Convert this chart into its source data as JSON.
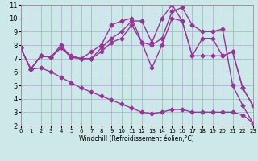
{
  "bg_color": "#cce8e8",
  "grid_color": "#aaaacc",
  "line_color": "#993399",
  "line_width": 1.0,
  "marker": "D",
  "marker_size": 2.5,
  "xlabel": "Windchill (Refroidissement éolien,°C)",
  "xlim": [
    0,
    23
  ],
  "ylim": [
    2,
    11
  ],
  "xticks": [
    0,
    1,
    2,
    3,
    4,
    5,
    6,
    7,
    8,
    9,
    10,
    11,
    12,
    13,
    14,
    15,
    16,
    17,
    18,
    19,
    20,
    21,
    22,
    23
  ],
  "yticks": [
    2,
    3,
    4,
    5,
    6,
    7,
    8,
    9,
    10,
    11
  ],
  "lines": [
    {
      "x": [
        0,
        1,
        2,
        3,
        4,
        5,
        6,
        7,
        8,
        9,
        10,
        11,
        12,
        13,
        14,
        15,
        16,
        17,
        18,
        19,
        20,
        21,
        22,
        23
      ],
      "y": [
        7.8,
        6.2,
        7.2,
        7.1,
        7.8,
        7.1,
        7.0,
        7.5,
        8.0,
        9.5,
        9.8,
        10.0,
        8.2,
        6.3,
        8.0,
        10.0,
        9.8,
        7.2,
        7.2,
        7.2,
        7.2,
        7.5,
        4.8,
        3.5
      ]
    },
    {
      "x": [
        0,
        1,
        2,
        3,
        4,
        5,
        6,
        7,
        8,
        9,
        10,
        11,
        12,
        13,
        14,
        15,
        16,
        17,
        18,
        19,
        20,
        21,
        22,
        23
      ],
      "y": [
        7.8,
        6.2,
        7.2,
        7.1,
        8.0,
        7.1,
        7.0,
        7.0,
        7.5,
        8.2,
        8.5,
        9.5,
        8.2,
        8.0,
        8.5,
        10.5,
        10.8,
        9.5,
        9.0,
        9.0,
        9.2,
        5.0,
        3.5,
        2.2
      ]
    },
    {
      "x": [
        0,
        1,
        2,
        3,
        4,
        5,
        6,
        7,
        8,
        9,
        10,
        11,
        12,
        13,
        14,
        15,
        16,
        17,
        18,
        19,
        20,
        21,
        22,
        23
      ],
      "y": [
        7.8,
        6.2,
        7.2,
        7.1,
        7.8,
        7.2,
        7.0,
        7.0,
        7.8,
        8.5,
        9.0,
        9.8,
        9.8,
        8.2,
        10.0,
        11.0,
        9.8,
        7.2,
        8.5,
        8.5,
        7.2,
        7.5,
        4.8,
        3.5
      ]
    },
    {
      "x": [
        0,
        1,
        2,
        3,
        4,
        5,
        6,
        7,
        8,
        9,
        10,
        11,
        12,
        13,
        14,
        15,
        16,
        17,
        18,
        19,
        20,
        21,
        22,
        23
      ],
      "y": [
        7.8,
        6.2,
        6.3,
        6.0,
        5.6,
        5.2,
        4.8,
        4.5,
        4.2,
        3.9,
        3.6,
        3.3,
        3.0,
        2.9,
        3.0,
        3.2,
        3.2,
        3.0,
        3.0,
        3.0,
        3.0,
        3.0,
        2.8,
        2.2
      ]
    }
  ]
}
